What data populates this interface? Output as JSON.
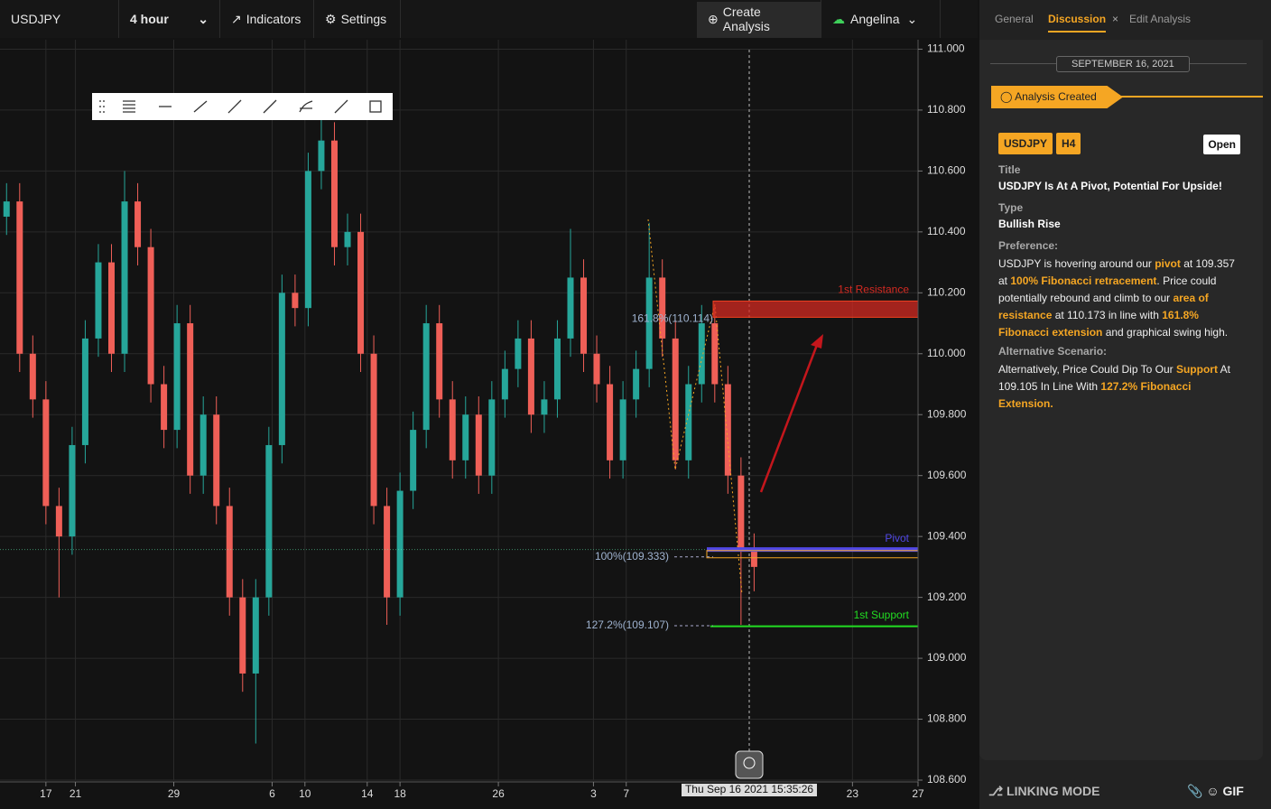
{
  "topbar": {
    "symbol": "USDJPY",
    "interval": "4 hour",
    "indicators": "Indicators",
    "settings": "Settings",
    "create": "Create Analysis",
    "user": "Angelina"
  },
  "chart_data": {
    "type": "candlestick",
    "x": [
      2,
      6,
      10,
      14,
      18,
      22,
      26,
      30,
      34,
      38,
      42,
      46,
      50,
      54,
      58,
      62,
      66,
      70,
      74,
      78,
      82,
      86,
      90,
      94,
      98,
      102,
      106,
      110,
      114,
      118,
      122,
      126,
      130,
      134,
      138,
      142,
      146,
      150,
      154,
      158,
      162,
      166,
      170,
      174,
      178,
      182,
      186,
      190,
      194,
      198,
      202,
      206,
      210,
      214,
      218,
      222,
      226,
      230
    ],
    "open": [
      110.45,
      110.5,
      110.0,
      109.85,
      109.5,
      109.4,
      109.7,
      110.05,
      110.3,
      110.0,
      110.5,
      110.35,
      109.9,
      109.75,
      110.1,
      109.6,
      109.8,
      109.5,
      109.2,
      108.95,
      109.2,
      109.7,
      110.2,
      110.15,
      110.6,
      110.7,
      110.35,
      110.4,
      110.0,
      109.5,
      109.2,
      109.55,
      109.75,
      110.1,
      109.85,
      109.65,
      109.8,
      109.6,
      109.85,
      109.95,
      110.05,
      109.8,
      109.85,
      110.05,
      110.25,
      110.0,
      109.9,
      109.65,
      109.85,
      109.95,
      110.25,
      110.05,
      109.65,
      109.9,
      110.1,
      109.9,
      109.6,
      109.35
    ],
    "high": [
      110.56,
      110.56,
      110.06,
      109.91,
      109.56,
      109.76,
      110.11,
      110.36,
      110.36,
      110.6,
      110.56,
      110.41,
      109.96,
      110.16,
      110.16,
      109.86,
      109.86,
      109.56,
      109.26,
      109.26,
      109.76,
      110.26,
      110.26,
      110.66,
      110.78,
      110.76,
      110.46,
      110.46,
      110.06,
      109.56,
      109.61,
      109.81,
      110.16,
      110.16,
      109.91,
      109.86,
      109.86,
      109.91,
      110.01,
      110.11,
      110.11,
      109.91,
      110.11,
      110.41,
      110.31,
      110.06,
      109.96,
      109.91,
      110.01,
      110.43,
      110.31,
      110.11,
      109.96,
      110.16,
      110.16,
      109.96,
      109.66,
      109.41
    ],
    "low": [
      110.39,
      109.94,
      109.79,
      109.44,
      109.2,
      109.34,
      109.64,
      109.99,
      109.94,
      109.94,
      110.29,
      109.84,
      109.69,
      109.69,
      109.54,
      109.54,
      109.44,
      109.14,
      108.89,
      108.72,
      109.14,
      109.64,
      110.09,
      110.09,
      110.54,
      110.29,
      110.29,
      109.94,
      109.44,
      109.11,
      109.14,
      109.49,
      109.69,
      109.79,
      109.59,
      109.59,
      109.54,
      109.54,
      109.79,
      109.89,
      109.74,
      109.74,
      109.79,
      109.99,
      109.94,
      109.84,
      109.59,
      109.59,
      109.79,
      109.89,
      109.99,
      109.62,
      109.59,
      109.84,
      109.84,
      109.54,
      109.11,
      109.22
    ],
    "close": [
      110.5,
      110.0,
      109.85,
      109.5,
      109.4,
      109.7,
      110.05,
      110.3,
      110.0,
      110.5,
      110.35,
      109.9,
      109.75,
      110.1,
      109.6,
      109.8,
      109.5,
      109.2,
      108.95,
      109.2,
      109.7,
      110.2,
      110.15,
      110.6,
      110.7,
      110.35,
      110.4,
      110.0,
      109.5,
      109.2,
      109.55,
      109.75,
      110.1,
      109.85,
      109.65,
      109.8,
      109.6,
      109.85,
      109.95,
      110.05,
      109.8,
      109.85,
      110.05,
      110.25,
      110.0,
      109.9,
      109.65,
      109.85,
      109.95,
      110.25,
      110.05,
      109.65,
      109.9,
      110.1,
      109.9,
      109.6,
      109.35,
      109.3
    ],
    "up_color": "#26a69a",
    "down_color": "#ef5f57",
    "xlim": [
      0,
      280
    ],
    "xticks": [
      {
        "value": 14,
        "label": "17"
      },
      {
        "value": 23,
        "label": "21"
      },
      {
        "value": 53,
        "label": "29"
      },
      {
        "value": 83,
        "label": "6"
      },
      {
        "value": 93,
        "label": "10"
      },
      {
        "value": 112,
        "label": "14"
      },
      {
        "value": 122,
        "label": "18"
      },
      {
        "value": 152,
        "label": "26"
      },
      {
        "value": 181,
        "label": "3"
      },
      {
        "value": 191,
        "label": "7"
      },
      {
        "value": 260,
        "label": "23"
      },
      {
        "value": 280,
        "label": "27"
      }
    ],
    "ylim": [
      108.6,
      111.031
    ],
    "yticks": [
      {
        "value": 108.6,
        "label": "108.600"
      },
      {
        "value": 108.8,
        "label": "108.800"
      },
      {
        "value": 109.0,
        "label": "109.000"
      },
      {
        "value": 109.2,
        "label": "109.200"
      },
      {
        "value": 109.4,
        "label": "109.400"
      },
      {
        "value": 109.6,
        "label": "109.600"
      },
      {
        "value": 109.8,
        "label": "109.800"
      },
      {
        "value": 110.0,
        "label": "110.000"
      },
      {
        "value": 110.2,
        "label": "110.200"
      },
      {
        "value": 110.4,
        "label": "110.400"
      },
      {
        "value": 110.6,
        "label": "110.600"
      },
      {
        "value": 110.8,
        "label": "110.800"
      },
      {
        "value": 111.0,
        "label": "111.000"
      }
    ],
    "grid": true,
    "levels": [
      {
        "name": "1st Resistance",
        "value": 110.173,
        "color": "#d42a22"
      },
      {
        "name": "Pivot",
        "value": 109.357,
        "color": "#5148e6"
      },
      {
        "name": "1st Support",
        "value": 109.105,
        "color": "#22dd22"
      }
    ],
    "fib_levels": [
      {
        "label": "161.8%(110.114)",
        "value": 110.114
      },
      {
        "label": "100%(109.333)",
        "value": 109.333
      },
      {
        "label": "127.2%(109.107)",
        "value": 109.107
      }
    ],
    "crosshair_label": "Thu Sep 16 2021 15:35:26"
  },
  "panel": {
    "tabs": [
      "General",
      "Discussion",
      "Edit Analysis"
    ],
    "active_tab": 1,
    "date": "SEPTEMBER 16, 2021",
    "event": "Analysis Created",
    "tags": [
      "USDJPY",
      "H4"
    ],
    "status": "Open",
    "fields": [
      {
        "label": "Title",
        "value": "USDJPY Is At A Pivot, Potential For Upside!"
      },
      {
        "label": "Type",
        "value": "Bullish Rise"
      }
    ],
    "preference": {
      "label": "Preference:",
      "segments": [
        {
          "text": "USDJPY is hovering around our ",
          "highlight": false
        },
        {
          "text": "pivot",
          "highlight": true
        },
        {
          "text": " at 109.357 at ",
          "highlight": false
        },
        {
          "text": "100% Fibonacci retracement",
          "highlight": true
        },
        {
          "text": ". Price could potentially rebound and climb to our ",
          "highlight": false
        },
        {
          "text": "area of resistance",
          "highlight": true
        },
        {
          "text": " at 110.173 in line with ",
          "highlight": false
        },
        {
          "text": "161.8% Fibonacci extension",
          "highlight": true
        },
        {
          "text": " and graphical swing high.",
          "highlight": false
        }
      ]
    },
    "alternative": {
      "label": "Alternative Scenario:",
      "segments": [
        {
          "text": "Alternatively, Price Could Dip To Our ",
          "highlight": false
        },
        {
          "text": "Support",
          "highlight": true
        },
        {
          "text": " At 109.105 In Line With ",
          "highlight": false
        },
        {
          "text": "127.2% Fibonacci Extension.",
          "highlight": true
        }
      ]
    }
  },
  "footer": {
    "linking": "LINKING MODE",
    "gif": "GIF"
  }
}
